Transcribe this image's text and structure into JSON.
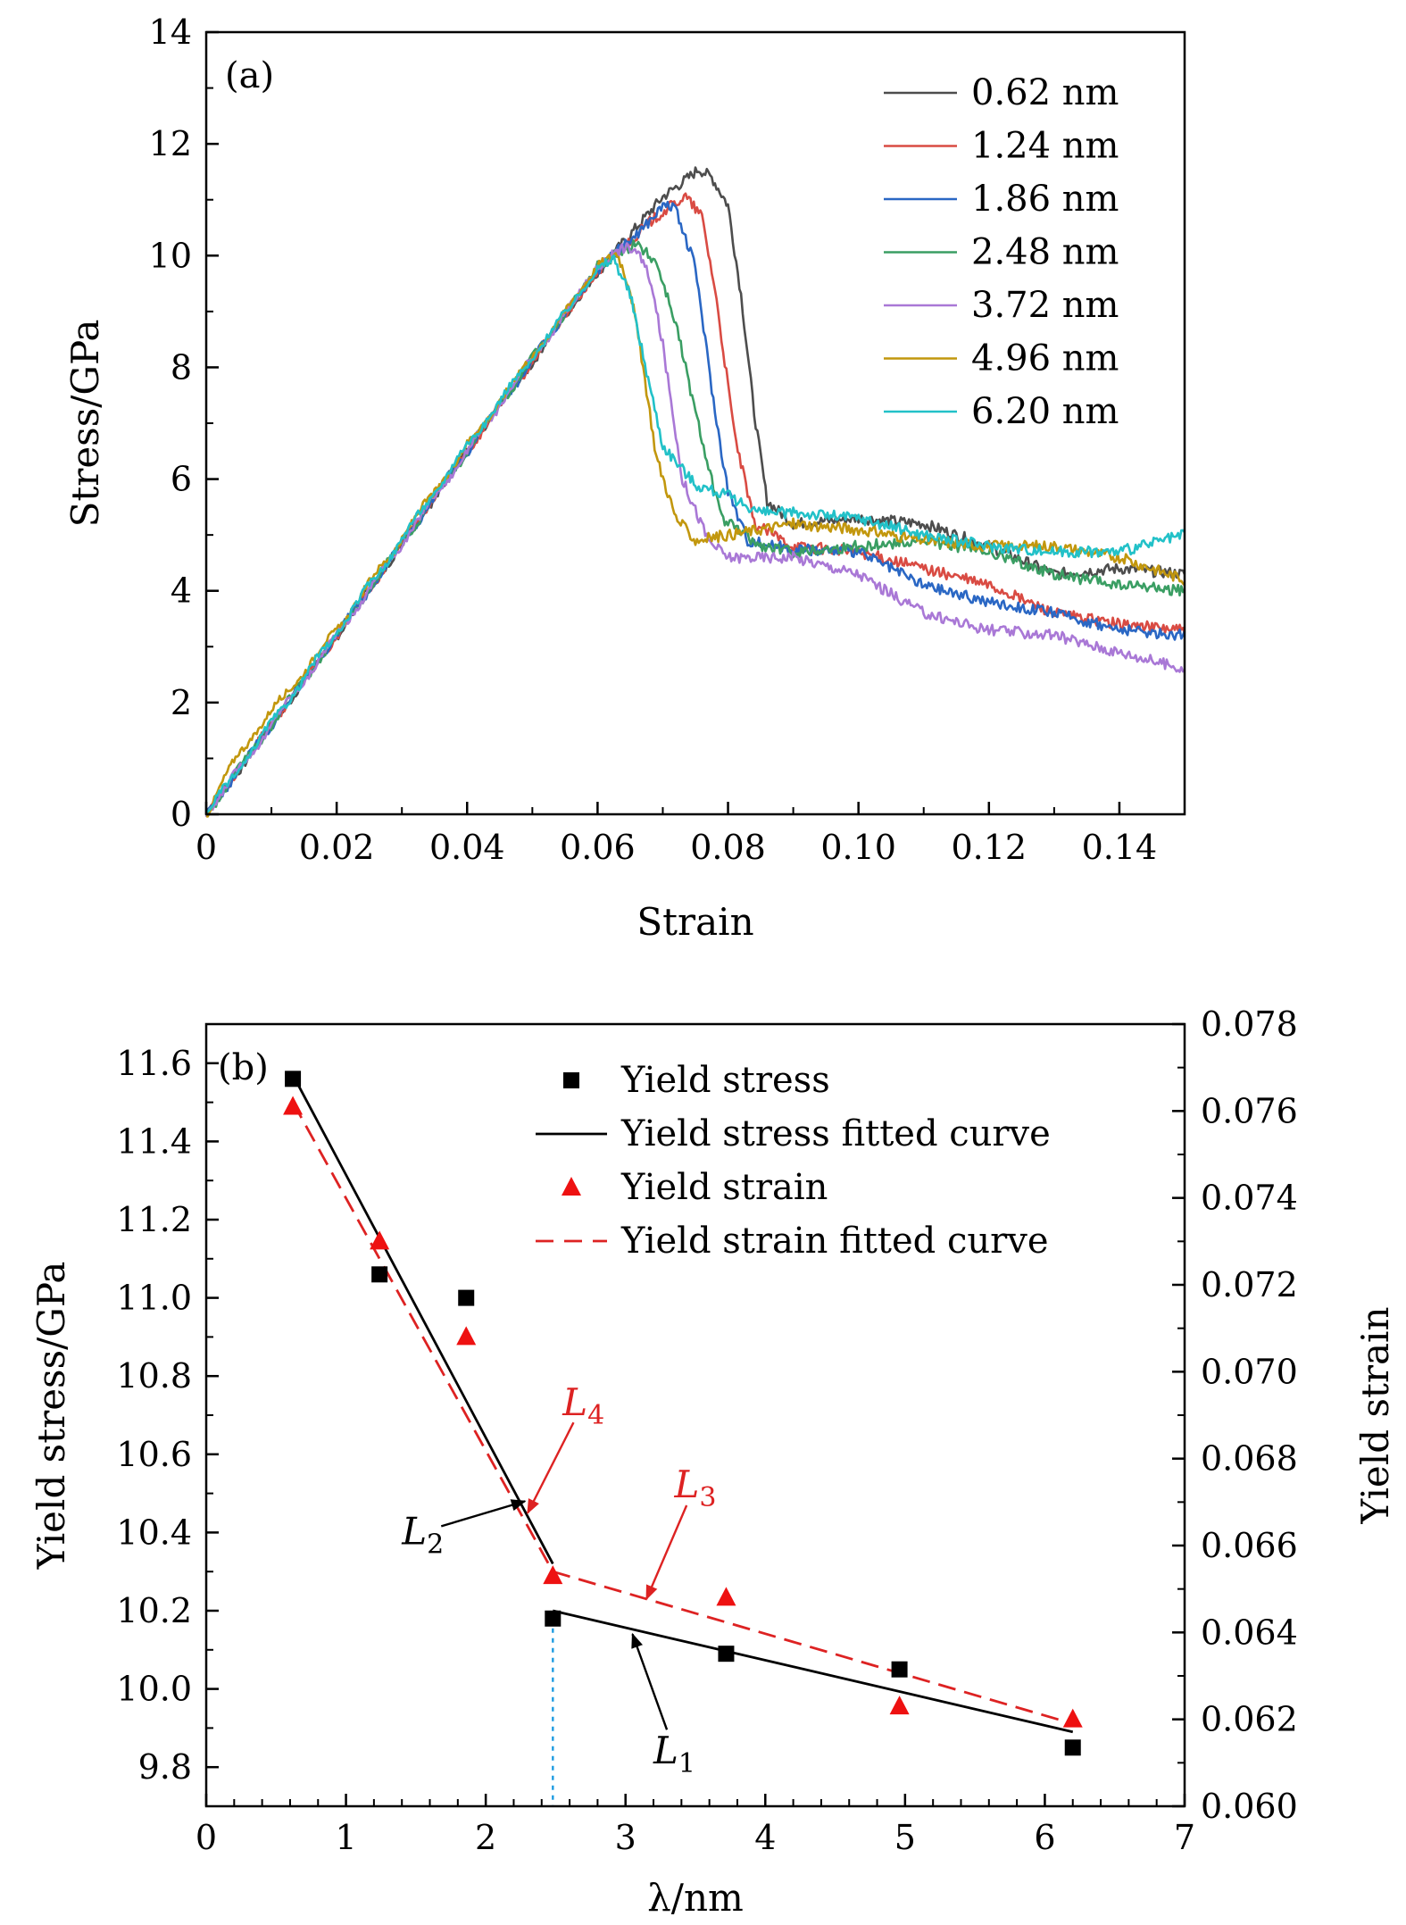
{
  "chart_data": [
    {
      "type": "line",
      "panel_label": "(a)",
      "xlabel": "Strain",
      "ylabel": "Stress/GPa",
      "xlim": [
        0,
        0.15
      ],
      "ylim": [
        0,
        14
      ],
      "xticks": [
        0,
        0.02,
        0.04,
        0.06,
        0.08,
        0.1,
        0.12,
        0.14
      ],
      "xtick_labels": [
        "0",
        "0.02",
        "0.04",
        "0.06",
        "0.08",
        "0.10",
        "0.12",
        "0.14"
      ],
      "yticks": [
        0,
        2,
        4,
        6,
        8,
        10,
        12,
        14
      ],
      "ytick_labels": [
        "0",
        "2",
        "4",
        "6",
        "8",
        "10",
        "12",
        "14"
      ],
      "legend_position": "top-right",
      "grid": false,
      "series": [
        {
          "name": "0.62 nm",
          "color": "#4d4d4d",
          "x": [
            0,
            0.02,
            0.04,
            0.06,
            0.07,
            0.074,
            0.0755,
            0.0775,
            0.08,
            0.082,
            0.084,
            0.086,
            0.09,
            0.1,
            0.11,
            0.12,
            0.13,
            0.14,
            0.15
          ],
          "y": [
            0,
            3.2,
            6.5,
            9.7,
            11.05,
            11.4,
            11.55,
            11.4,
            10.9,
            9.3,
            7.2,
            5.6,
            5.2,
            5.3,
            5.2,
            4.8,
            4.3,
            4.4,
            4.3
          ]
        },
        {
          "name": "1.24 nm",
          "color": "#d94b43",
          "x": [
            0,
            0.02,
            0.04,
            0.06,
            0.068,
            0.072,
            0.0735,
            0.076,
            0.078,
            0.081,
            0.084,
            0.09,
            0.1,
            0.11,
            0.12,
            0.13,
            0.14,
            0.15
          ],
          "y": [
            0,
            3.2,
            6.5,
            9.7,
            10.6,
            10.95,
            11.05,
            10.7,
            9.4,
            6.8,
            5.2,
            4.8,
            4.7,
            4.4,
            4.1,
            3.6,
            3.4,
            3.3
          ]
        },
        {
          "name": "1.86 nm",
          "color": "#2a67c4",
          "x": [
            0,
            0.02,
            0.04,
            0.06,
            0.067,
            0.0705,
            0.072,
            0.075,
            0.078,
            0.08,
            0.083,
            0.09,
            0.1,
            0.11,
            0.12,
            0.13,
            0.14,
            0.15
          ],
          "y": [
            0,
            3.2,
            6.5,
            9.75,
            10.5,
            10.95,
            10.8,
            9.8,
            7.2,
            5.8,
            4.9,
            4.75,
            4.7,
            4.1,
            3.8,
            3.6,
            3.3,
            3.2
          ]
        },
        {
          "name": "2.48 nm",
          "color": "#3a9e63",
          "x": [
            0,
            0.02,
            0.04,
            0.06,
            0.064,
            0.066,
            0.069,
            0.072,
            0.075,
            0.079,
            0.085,
            0.09,
            0.1,
            0.11,
            0.12,
            0.13,
            0.14,
            0.15
          ],
          "y": [
            0,
            3.2,
            6.5,
            9.8,
            10.1,
            10.2,
            9.9,
            8.8,
            7.2,
            5.3,
            4.8,
            4.7,
            4.8,
            4.9,
            4.7,
            4.3,
            4.1,
            4.0
          ]
        },
        {
          "name": "3.72 nm",
          "color": "#a978d6",
          "x": [
            0,
            0.02,
            0.04,
            0.06,
            0.064,
            0.066,
            0.068,
            0.07,
            0.073,
            0.077,
            0.08,
            0.09,
            0.1,
            0.11,
            0.12,
            0.13,
            0.14,
            0.15
          ],
          "y": [
            0,
            3.2,
            6.5,
            9.8,
            10.15,
            10.1,
            9.6,
            8.4,
            6.0,
            4.9,
            4.6,
            4.6,
            4.3,
            3.6,
            3.3,
            3.2,
            2.9,
            2.6
          ]
        },
        {
          "name": "4.96 nm",
          "color": "#c2970d",
          "x": [
            0,
            0.005,
            0.02,
            0.04,
            0.055,
            0.06,
            0.063,
            0.065,
            0.067,
            0.069,
            0.072,
            0.075,
            0.08,
            0.09,
            0.1,
            0.11,
            0.12,
            0.13,
            0.14,
            0.15
          ],
          "y": [
            0,
            1.1,
            3.3,
            6.6,
            9.0,
            9.8,
            10.05,
            9.4,
            8.0,
            6.4,
            5.3,
            4.9,
            5.0,
            5.2,
            5.1,
            4.9,
            4.8,
            4.8,
            4.6,
            4.2
          ]
        },
        {
          "name": "6.20 nm",
          "color": "#22c1c8",
          "x": [
            0,
            0.02,
            0.04,
            0.06,
            0.0625,
            0.065,
            0.067,
            0.07,
            0.075,
            0.08,
            0.085,
            0.09,
            0.1,
            0.11,
            0.12,
            0.13,
            0.14,
            0.15
          ],
          "y": [
            0,
            3.25,
            6.6,
            9.75,
            9.95,
            9.3,
            8.2,
            6.6,
            5.9,
            5.7,
            5.4,
            5.4,
            5.3,
            5.0,
            4.8,
            4.7,
            4.7,
            5.0
          ]
        }
      ]
    },
    {
      "type": "scatter",
      "panel_label": "(b)",
      "xlabel": "λ/nm",
      "ylabel": "Yield stress/GPa",
      "y2label": "Yield strain",
      "xlim": [
        0,
        7
      ],
      "ylim": [
        9.7,
        11.7
      ],
      "y2lim": [
        0.06,
        0.078
      ],
      "xticks": [
        0,
        1,
        2,
        3,
        4,
        5,
        6,
        7
      ],
      "xtick_labels": [
        "0",
        "1",
        "2",
        "3",
        "4",
        "5",
        "6",
        "7"
      ],
      "yticks": [
        9.8,
        10.0,
        10.2,
        10.4,
        10.6,
        10.8,
        11.0,
        11.2,
        11.4,
        11.6
      ],
      "ytick_labels": [
        "9.8",
        "10.0",
        "10.2",
        "10.4",
        "10.6",
        "10.8",
        "11.0",
        "11.2",
        "11.4",
        "11.6"
      ],
      "y2ticks": [
        0.06,
        0.062,
        0.064,
        0.066,
        0.068,
        0.07,
        0.072,
        0.074,
        0.076,
        0.078
      ],
      "y2tick_labels": [
        "0.060",
        "0.062",
        "0.064",
        "0.066",
        "0.068",
        "0.070",
        "0.072",
        "0.074",
        "0.076",
        "0.078"
      ],
      "legend_position": "top-right",
      "grid": false,
      "legend": [
        "Yield stress",
        "Yield stress fitted curve",
        "Yield strain",
        "Yield strain fitted curve"
      ],
      "series": [
        {
          "name": "Yield stress",
          "axis": "left",
          "marker": "square",
          "color": "#000000",
          "x": [
            0.62,
            1.24,
            1.86,
            2.48,
            3.72,
            4.96,
            6.2
          ],
          "y": [
            11.56,
            11.06,
            11.0,
            10.18,
            10.09,
            10.05,
            9.85
          ]
        },
        {
          "name": "Yield strain",
          "axis": "right",
          "marker": "triangle",
          "color": "#ee1111",
          "x": [
            0.62,
            1.24,
            1.86,
            2.48,
            3.72,
            4.96,
            6.2
          ],
          "y": [
            0.0761,
            0.073,
            0.0708,
            0.0653,
            0.0648,
            0.0623,
            0.062
          ]
        },
        {
          "name": "Yield stress fitted curve",
          "axis": "left",
          "style": "solid",
          "color": "#000000",
          "segments": [
            {
              "label": "L2",
              "x": [
                0.62,
                2.48
              ],
              "y": [
                11.57,
                10.32
              ]
            },
            {
              "label": "L1",
              "x": [
                2.48,
                6.2
              ],
              "y": [
                10.2,
                9.89
              ]
            }
          ]
        },
        {
          "name": "Yield strain fitted curve",
          "axis": "right",
          "style": "dashed",
          "color": "#dd2222",
          "segments": [
            {
              "label": "L4",
              "x": [
                0.62,
                2.48
              ],
              "y": [
                0.0762,
                0.0654
              ]
            },
            {
              "label": "L3",
              "x": [
                2.48,
                6.2
              ],
              "y": [
                0.0654,
                0.0619
              ]
            }
          ]
        },
        {
          "name": "",
          "axis": "left",
          "style": "dotted",
          "color": "#1e9be0",
          "x": [
            2.48,
            2.48
          ],
          "y": [
            10.18,
            9.7
          ]
        }
      ],
      "annotations": [
        {
          "label": "L1",
          "base": "L",
          "sub": "1",
          "color": "#000000",
          "text_x": 3.35,
          "text_y": 9.81,
          "arrow_to_x": 3.05,
          "arrow_to_y": 10.14
        },
        {
          "label": "L2",
          "base": "L",
          "sub": "2",
          "color": "#000000",
          "text_x": 1.55,
          "text_y": 10.37,
          "arrow_to_x": 2.28,
          "arrow_to_y": 10.48
        },
        {
          "label": "L3",
          "base": "L",
          "sub": "3",
          "color": "#dd2222",
          "text_x": 3.5,
          "text_y": 10.49,
          "arrow_to_x": 3.15,
          "arrow_to_y": 10.23
        },
        {
          "label": "L4",
          "base": "L",
          "sub": "4",
          "color": "#dd2222",
          "text_x": 2.7,
          "text_y": 10.7,
          "arrow_to_x": 2.3,
          "arrow_to_y": 10.45
        }
      ]
    }
  ]
}
